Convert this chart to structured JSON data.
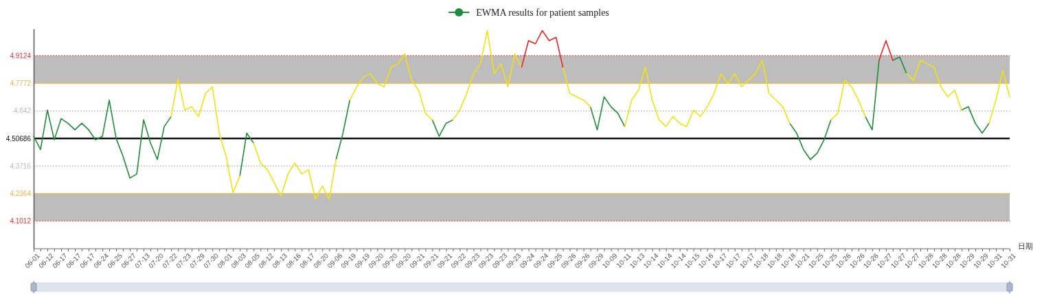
{
  "chart_data": {
    "type": "line",
    "xlabel": "日期",
    "legend": "top",
    "line_style": "solid",
    "categories": [
      "06-01",
      null,
      "06-12",
      null,
      "06-17",
      null,
      "06-17",
      null,
      "06-17",
      null,
      "06-24",
      null,
      "06-25",
      null,
      "06-27",
      null,
      "07-13",
      null,
      "07-20",
      null,
      "07-22",
      null,
      "07-23",
      null,
      "07-29",
      null,
      "07-30",
      null,
      "08-01",
      null,
      "08-03",
      null,
      "08-05",
      null,
      "08-12",
      null,
      "08-13",
      null,
      "08-16",
      null,
      "08-17",
      null,
      "08-20",
      null,
      "09-06",
      null,
      "09-19",
      null,
      "09-19",
      null,
      "09-20",
      null,
      "09-20",
      null,
      "09-20",
      null,
      "09-21",
      null,
      "09-21",
      null,
      "09-21",
      null,
      "09-22",
      null,
      "09-23",
      null,
      "09-23",
      null,
      "09-23",
      null,
      "09-23",
      null,
      "09-24",
      null,
      "09-24",
      null,
      "09-25",
      null,
      "09-26",
      null,
      "09-26",
      null,
      "09-29",
      null,
      "10-09",
      null,
      "10-11",
      null,
      "10-13",
      null,
      "10-14",
      null,
      "10-14",
      null,
      "10-14",
      null,
      "10-15",
      null,
      "10-16",
      null,
      "10-17",
      null,
      "10-17",
      null,
      "10-17",
      null,
      "10-18",
      null,
      "10-18",
      null,
      "10-18",
      null,
      "10-21",
      null,
      "10-25",
      null,
      "10-25",
      null,
      "10-26",
      null,
      "10-26",
      null,
      "10-26",
      null,
      "10-27",
      null,
      "10-27",
      null,
      "10-27",
      null,
      "10-28",
      null,
      "10-28",
      null,
      "10-28",
      null,
      "10-29",
      null,
      "10-29",
      null,
      "10-31",
      null,
      "10-31"
    ],
    "ylim": [
      3.965,
      5.045
    ],
    "yticks": [
      4.1012,
      4.2364,
      4.3716,
      4.50686,
      4.642,
      4.7772,
      4.9124
    ],
    "tick_labels": "xy",
    "grid": false,
    "ref_lines": [
      {
        "axis": "y",
        "value": 4.9124,
        "color": "#ee3333",
        "line_style": "dotted"
      },
      {
        "axis": "y",
        "value": 4.7772,
        "color": "#e8b84a",
        "line_style": "solid"
      },
      {
        "axis": "y",
        "value": 4.642,
        "color": "#bbbbbb",
        "line_style": "dotted"
      },
      {
        "axis": "y",
        "value": 4.50686,
        "color": "#111111",
        "line_style": "solid"
      },
      {
        "axis": "y",
        "value": 4.3716,
        "color": "#bbbbbb",
        "line_style": "dotted"
      },
      {
        "axis": "y",
        "value": 4.2364,
        "color": "#e8b84a",
        "line_style": "solid"
      },
      {
        "axis": "y",
        "value": 4.1012,
        "color": "#ee3333",
        "line_style": "dotted"
      }
    ],
    "bands": [
      {
        "axis": "y",
        "from": 4.7772,
        "to": 4.9124,
        "color": "#bdbdbd"
      },
      {
        "axis": "y",
        "from": 4.1012,
        "to": 4.2364,
        "color": "#bdbdbd"
      }
    ],
    "series": [
      {
        "name": "EWMA results for patient samples",
        "color": "#1e8c3a",
        "values": [
          4.517,
          4.452,
          4.646,
          4.5,
          4.604,
          4.581,
          4.549,
          4.581,
          4.549,
          4.5,
          4.517,
          4.695,
          4.507,
          4.419,
          4.312,
          4.332,
          4.598,
          4.484,
          4.403,
          4.565,
          4.614,
          null,
          null,
          null,
          null,
          null,
          null,
          null,
          null,
          null,
          4.322,
          4.533,
          4.484,
          null,
          null,
          null,
          null,
          null,
          null,
          null,
          null,
          null,
          null,
          null,
          4.403,
          4.533,
          4.695,
          null,
          null,
          null,
          null,
          null,
          null,
          null,
          null,
          null,
          null,
          null,
          4.598,
          4.517,
          4.581,
          4.598,
          null,
          null,
          null,
          null,
          null,
          null,
          null,
          null,
          null,
          null,
          null,
          null,
          null,
          null,
          null,
          null,
          null,
          null,
          null,
          4.662,
          4.549,
          4.711,
          4.662,
          4.63,
          4.565,
          null,
          null,
          null,
          null,
          null,
          null,
          null,
          null,
          null,
          null,
          null,
          null,
          null,
          null,
          null,
          null,
          null,
          null,
          null,
          null,
          null,
          null,
          null,
          4.581,
          4.533,
          4.452,
          4.403,
          4.435,
          4.5,
          4.598,
          null,
          null,
          null,
          null,
          4.614,
          4.549,
          4.89,
          null,
          4.89,
          4.906,
          4.825,
          null,
          null,
          null,
          null,
          null,
          null,
          null,
          4.646,
          4.662,
          4.581,
          4.533,
          4.581,
          null,
          null,
          null
        ]
      },
      {
        "color": "#f2e30c",
        "values": [
          null,
          null,
          null,
          null,
          null,
          null,
          null,
          null,
          null,
          null,
          null,
          null,
          null,
          null,
          null,
          null,
          null,
          null,
          null,
          null,
          4.614,
          4.799,
          4.646,
          4.662,
          4.614,
          4.727,
          4.76,
          4.533,
          4.419,
          4.241,
          4.322,
          null,
          4.484,
          4.387,
          4.354,
          4.289,
          4.224,
          4.332,
          4.387,
          4.332,
          4.354,
          4.208,
          4.273,
          4.208,
          4.403,
          null,
          4.695,
          4.76,
          4.809,
          4.825,
          4.776,
          4.76,
          4.857,
          4.873,
          4.922,
          4.792,
          4.744,
          4.63,
          4.598,
          null,
          null,
          4.598,
          4.646,
          4.727,
          4.825,
          4.873,
          5.036,
          4.825,
          4.873,
          4.76,
          4.922,
          4.857,
          null,
          null,
          null,
          null,
          null,
          4.857,
          4.727,
          4.711,
          4.695,
          4.662,
          null,
          null,
          null,
          null,
          4.565,
          4.695,
          4.744,
          4.857,
          4.695,
          4.598,
          4.565,
          4.614,
          4.581,
          4.565,
          4.646,
          4.614,
          4.662,
          4.727,
          4.825,
          4.776,
          4.825,
          4.76,
          4.792,
          4.825,
          4.89,
          4.727,
          4.695,
          4.662,
          4.581,
          null,
          null,
          null,
          null,
          null,
          4.598,
          4.63,
          4.792,
          4.76,
          4.695,
          4.614,
          null,
          null,
          null,
          null,
          null,
          4.825,
          4.792,
          4.89,
          4.873,
          4.857,
          4.76,
          4.711,
          4.744,
          4.646,
          null,
          null,
          null,
          4.581,
          4.695,
          4.841,
          4.711
        ]
      },
      {
        "color": "#ee2222",
        "values": [
          null,
          null,
          null,
          null,
          null,
          null,
          null,
          null,
          null,
          null,
          null,
          null,
          null,
          null,
          null,
          null,
          null,
          null,
          null,
          null,
          null,
          null,
          null,
          null,
          null,
          null,
          null,
          null,
          null,
          null,
          null,
          null,
          null,
          null,
          null,
          null,
          null,
          null,
          null,
          null,
          null,
          null,
          null,
          null,
          null,
          null,
          null,
          null,
          null,
          null,
          null,
          null,
          null,
          null,
          null,
          null,
          null,
          null,
          null,
          null,
          null,
          null,
          null,
          null,
          null,
          null,
          null,
          null,
          null,
          null,
          null,
          4.857,
          4.987,
          4.971,
          5.036,
          4.987,
          5.003,
          4.857,
          null,
          null,
          null,
          null,
          null,
          null,
          null,
          null,
          null,
          null,
          null,
          null,
          null,
          null,
          null,
          null,
          null,
          null,
          null,
          null,
          null,
          null,
          null,
          null,
          null,
          null,
          null,
          null,
          null,
          null,
          null,
          null,
          null,
          null,
          null,
          null,
          null,
          null,
          null,
          null,
          null,
          null,
          null,
          null,
          null,
          4.89,
          4.987,
          4.89,
          null,
          null,
          null,
          null,
          null,
          null,
          null,
          null,
          null,
          null,
          null,
          null,
          null,
          null,
          null,
          null,
          null
        ]
      }
    ]
  }
}
